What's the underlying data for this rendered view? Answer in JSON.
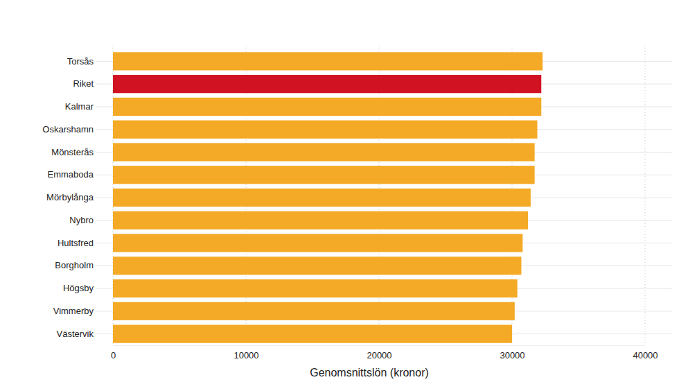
{
  "chart_data": {
    "type": "bar",
    "orientation": "horizontal",
    "xlabel": "Genomsnittslön (kronor)",
    "categories": [
      "Torsås",
      "Riket",
      "Kalmar",
      "Oskarshamn",
      "Mönsterås",
      "Emmaboda",
      "Mörbylånga",
      "Nybro",
      "Hultsfred",
      "Borgholm",
      "Högsby",
      "Vimmerby",
      "Västervik"
    ],
    "values": [
      32300,
      32200,
      32200,
      31900,
      31700,
      31700,
      31400,
      31200,
      30800,
      30700,
      30400,
      30200,
      30000
    ],
    "colors": [
      "#f4aa26",
      "#d01222",
      "#f4aa26",
      "#f4aa26",
      "#f4aa26",
      "#f4aa26",
      "#f4aa26",
      "#f4aa26",
      "#f4aa26",
      "#f4aa26",
      "#f4aa26",
      "#f4aa26",
      "#f4aa26"
    ],
    "xlim": [
      0,
      40000
    ],
    "xticks": [
      0,
      10000,
      20000,
      30000,
      40000
    ],
    "grid": true
  }
}
